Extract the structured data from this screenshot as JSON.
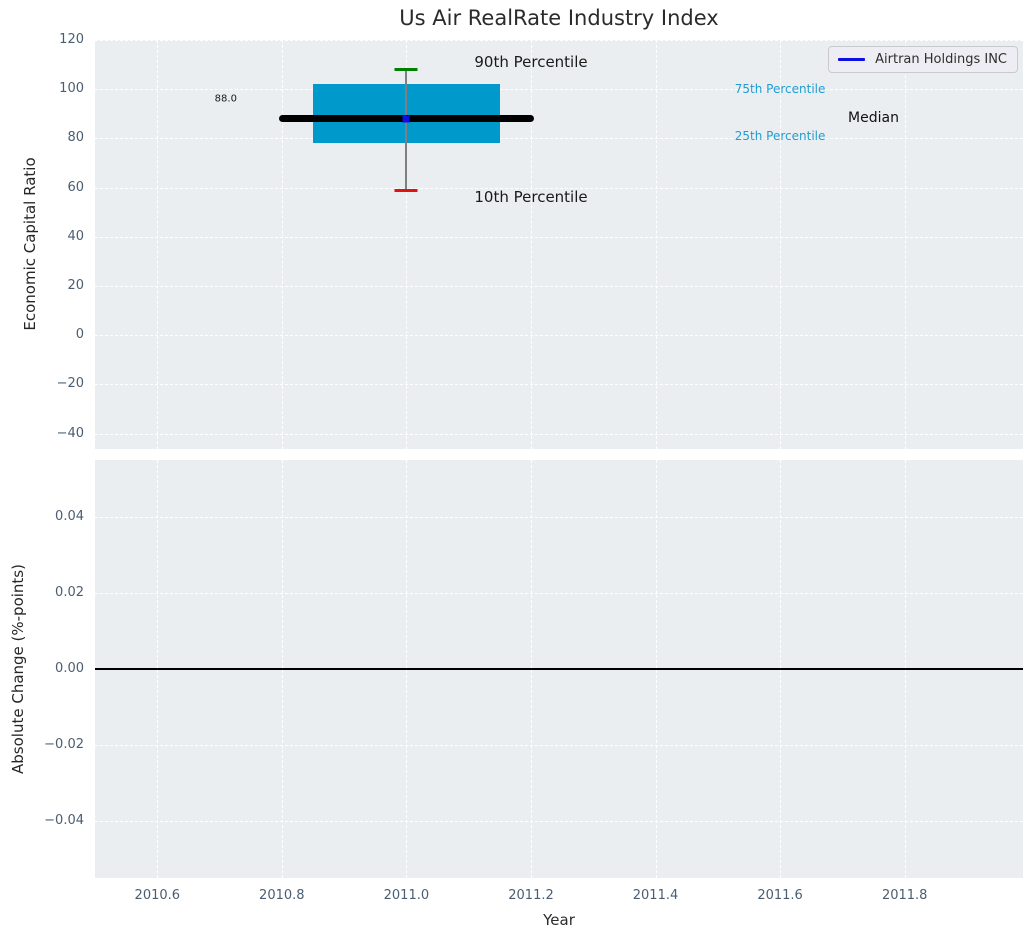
{
  "title": "Us Air RealRate Industry Index",
  "xlabel": "Year",
  "legend": {
    "label": "Airtran Holdings INC"
  },
  "colors": {
    "axes_background": "#eaeef0",
    "box_fill": "#0099cc",
    "p90_cap": "#008000",
    "p10_cap": "#e01212",
    "whisker": "#7f7f7f",
    "median_line": "#000000",
    "company_line": "#0d0de6",
    "percentile_label": "#1f9ed2",
    "tick_label": "#4b5e71"
  },
  "chart_data": [
    {
      "type": "box",
      "title": "Us Air RealRate Industry Index",
      "xlabel": "Year",
      "ylabel": "Economic Capital Ratio",
      "grid": true,
      "legend_position": "upper right",
      "xlim": [
        2010.5,
        2011.99
      ],
      "ylim": [
        -46.3,
        120
      ],
      "xticks": {
        "values": [
          2010.6,
          2010.8,
          2011.0,
          2011.2,
          2011.4,
          2011.6,
          2011.8
        ],
        "labels": [
          "2010.6",
          "2010.8",
          "2011.0",
          "2011.2",
          "2011.4",
          "2011.6",
          "2011.8"
        ]
      },
      "yticks": {
        "values": [
          120,
          100,
          80,
          60,
          40,
          20,
          0,
          -20,
          -40
        ],
        "labels": [
          "120",
          "100",
          "80",
          "60",
          "40",
          "20",
          "0",
          "−20",
          "−40"
        ]
      },
      "boxes": [
        {
          "x": 2011.0,
          "box_halfwidth": 0.15,
          "p10": 59,
          "p25": 78,
          "median": 88,
          "p75": 102,
          "p90": 108,
          "median_line_xspan": [
            2010.795,
            2011.205
          ]
        }
      ],
      "series": [
        {
          "name": "Airtran Holdings INC",
          "x": [
            2011.0
          ],
          "y": [
            88.0
          ],
          "color": "#0d0de6"
        }
      ],
      "annotations": [
        {
          "text": "90th Percentile",
          "x": 2011.2,
          "y": 111,
          "color": "#1a1a1a"
        },
        {
          "text": "10th Percentile",
          "x": 2011.2,
          "y": 56,
          "color": "#1a1a1a"
        },
        {
          "text": "75th Percentile",
          "x": 2011.6,
          "y": 100,
          "color": "#1f9ed2"
        },
        {
          "text": "25th Percentile",
          "x": 2011.6,
          "y": 81,
          "color": "#1f9ed2"
        },
        {
          "text": "Median",
          "x": 2011.75,
          "y": 88.5,
          "color": "#111111"
        },
        {
          "text": "88.0",
          "x": 2010.71,
          "y": 96,
          "color": "#1a1a1a"
        }
      ]
    },
    {
      "type": "line",
      "xlabel": "Year",
      "ylabel": "Absolute Change (%-points)",
      "grid": true,
      "xlim": [
        2010.5,
        2011.99
      ],
      "ylim": [
        -0.055,
        0.055
      ],
      "xticks": {
        "values": [
          2010.6,
          2010.8,
          2011.0,
          2011.2,
          2011.4,
          2011.6,
          2011.8
        ],
        "labels": [
          "2010.6",
          "2010.8",
          "2011.0",
          "2011.2",
          "2011.4",
          "2011.6",
          "2011.8"
        ]
      },
      "yticks": {
        "values": [
          0.04,
          0.02,
          0,
          -0.02,
          -0.04
        ],
        "labels": [
          "0.04",
          "0.02",
          "0.00",
          "−0.02",
          "−0.04"
        ]
      },
      "zero_line_y": 0.0,
      "series": []
    }
  ]
}
